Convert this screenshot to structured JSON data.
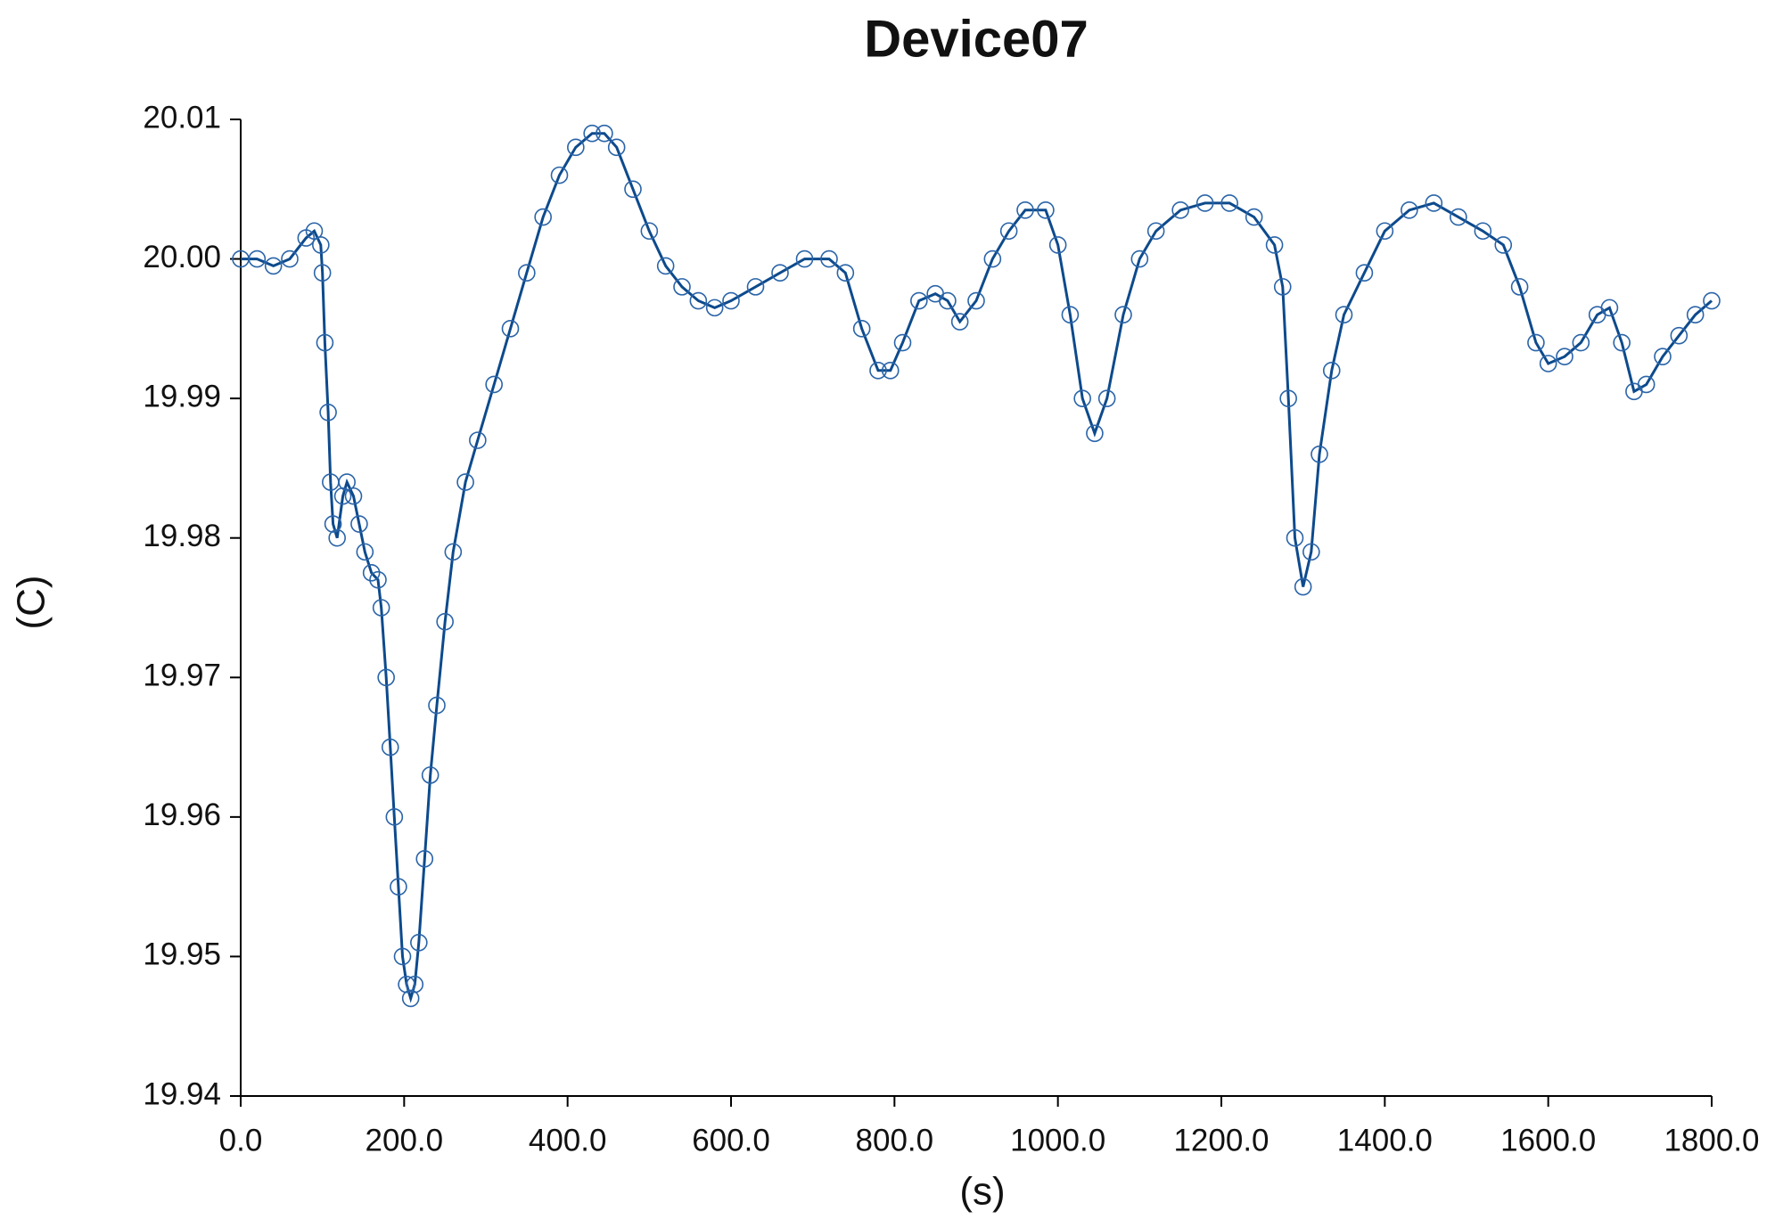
{
  "chart_data": {
    "type": "line",
    "title": "Device07",
    "x_label": "(s)",
    "y_label": "(C)",
    "x": [
      0,
      20,
      40,
      60,
      80,
      90,
      98,
      100,
      103,
      107,
      110,
      113,
      118,
      125,
      130,
      138,
      145,
      152,
      160,
      168,
      172,
      178,
      183,
      188,
      193,
      198,
      203,
      208,
      213,
      218,
      225,
      232,
      240,
      250,
      260,
      275,
      290,
      310,
      330,
      350,
      370,
      390,
      410,
      430,
      445,
      460,
      480,
      500,
      520,
      540,
      560,
      580,
      600,
      630,
      660,
      690,
      720,
      740,
      760,
      780,
      795,
      810,
      830,
      850,
      865,
      880,
      900,
      920,
      940,
      960,
      985,
      1000,
      1015,
      1030,
      1045,
      1060,
      1080,
      1100,
      1120,
      1150,
      1180,
      1210,
      1240,
      1265,
      1275,
      1282,
      1290,
      1300,
      1310,
      1320,
      1335,
      1350,
      1375,
      1400,
      1430,
      1460,
      1490,
      1520,
      1545,
      1565,
      1585,
      1600,
      1620,
      1640,
      1660,
      1675,
      1690,
      1705,
      1720,
      1740,
      1760,
      1780,
      1800
    ],
    "values": [
      20.0,
      20.0,
      19.9995,
      20.0,
      20.0015,
      20.002,
      20.001,
      19.999,
      19.994,
      19.989,
      19.984,
      19.981,
      19.98,
      19.983,
      19.984,
      19.983,
      19.981,
      19.979,
      19.9775,
      19.977,
      19.975,
      19.97,
      19.965,
      19.96,
      19.955,
      19.95,
      19.948,
      19.947,
      19.948,
      19.951,
      19.957,
      19.963,
      19.968,
      19.974,
      19.979,
      19.984,
      19.987,
      19.991,
      19.995,
      19.999,
      20.003,
      20.006,
      20.008,
      20.009,
      20.009,
      20.008,
      20.005,
      20.002,
      19.9995,
      19.998,
      19.997,
      19.9965,
      19.997,
      19.998,
      19.999,
      20.0,
      20.0,
      19.999,
      19.995,
      19.992,
      19.992,
      19.994,
      19.997,
      19.9975,
      19.997,
      19.9955,
      19.997,
      20.0,
      20.002,
      20.0035,
      20.0035,
      20.001,
      19.996,
      19.99,
      19.9875,
      19.99,
      19.996,
      20.0,
      20.002,
      20.0035,
      20.004,
      20.004,
      20.003,
      20.001,
      19.998,
      19.99,
      19.98,
      19.9765,
      19.979,
      19.986,
      19.992,
      19.996,
      19.999,
      20.002,
      20.0035,
      20.004,
      20.003,
      20.002,
      20.001,
      19.998,
      19.994,
      19.9925,
      19.993,
      19.994,
      19.996,
      19.9965,
      19.994,
      19.9905,
      19.991,
      19.993,
      19.9945,
      19.996,
      19.997
    ],
    "color": "#0d4a8c",
    "marker_color": "#2a64a8",
    "xlim": [
      0,
      1800
    ],
    "xticks": [
      {
        "value": 0,
        "label": "0.0"
      },
      {
        "value": 200,
        "label": "200.0"
      },
      {
        "value": 400,
        "label": "400.0"
      },
      {
        "value": 600,
        "label": "600.0"
      },
      {
        "value": 800,
        "label": "800.0"
      },
      {
        "value": 1000,
        "label": "1000.0"
      },
      {
        "value": 1200,
        "label": "1200.0"
      },
      {
        "value": 1400,
        "label": "1400.0"
      },
      {
        "value": 1600,
        "label": "1600.0"
      },
      {
        "value": 1800,
        "label": "1800.0"
      }
    ],
    "ylim": [
      19.94,
      20.01
    ],
    "yticks": [
      19.94,
      19.95,
      19.96,
      19.97,
      19.98,
      19.99,
      {
        "value": 20,
        "label": "20.00"
      },
      20.01
    ]
  }
}
